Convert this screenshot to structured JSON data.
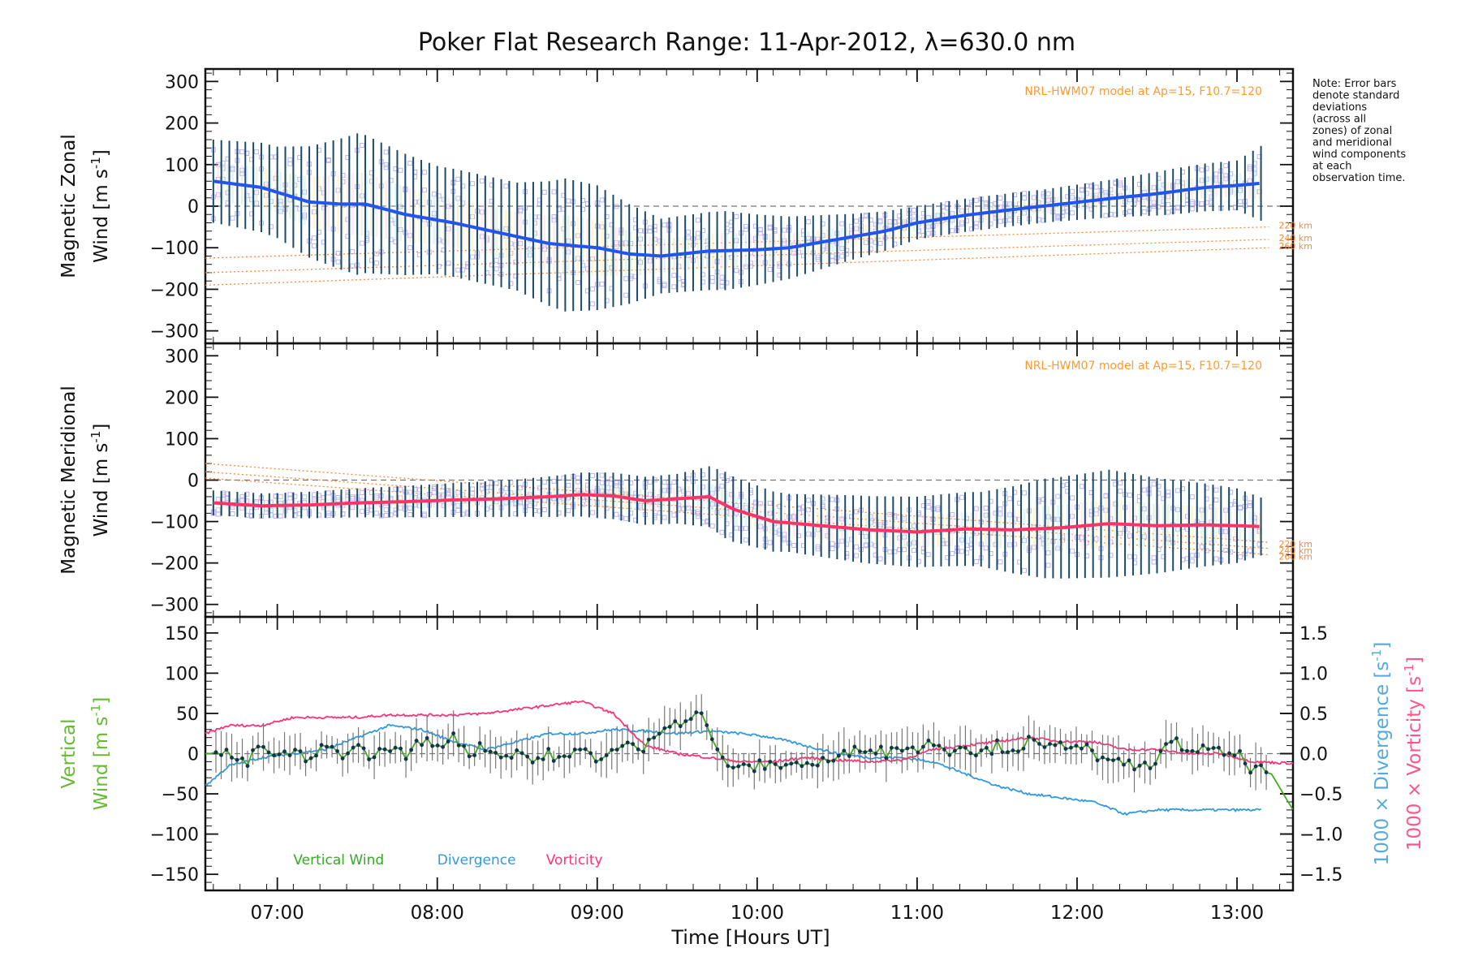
{
  "chart_data": {
    "title": "Poker Flat Research Range: 11-Apr-2012, λ=630.0 nm",
    "x_axis": {
      "label": "Time [Hours UT]",
      "range_hours": [
        6.55,
        13.35
      ],
      "tick_hours": [
        7,
        8,
        9,
        10,
        11,
        12,
        13
      ],
      "tick_labels": [
        "07:00",
        "08:00",
        "09:00",
        "10:00",
        "11:00",
        "12:00",
        "13:00"
      ]
    },
    "note": "Note: Error bars denote standard deviations (across all zones) of zonal and meridional wind components at each observation time.",
    "panels": [
      {
        "id": "zonal",
        "type": "line",
        "ylabel_line1": "Magnetic Zonal",
        "ylabel_line2": "Wind [m s",
        "ylabel_exp": "-1",
        "ylabel_close": "]",
        "ylim": [
          -330,
          330
        ],
        "yticks": [
          -300,
          -200,
          -100,
          0,
          100,
          200,
          300
        ],
        "model_label": "NRL-HWM07 model at Ap=15, F10.7=120",
        "model_altitudes": [
          "220 km",
          "240 km",
          "260 km"
        ],
        "series_color": "#2255ee",
        "mean_series": {
          "name": "Mean zonal wind",
          "x": [
            6.6,
            6.9,
            7.2,
            7.4,
            7.55,
            7.8,
            8.1,
            8.4,
            8.7,
            9.0,
            9.2,
            9.4,
            9.7,
            10.0,
            10.2,
            10.5,
            10.8,
            11.0,
            11.3,
            11.6,
            11.9,
            12.2,
            12.5,
            12.8,
            13.0,
            13.15
          ],
          "y": [
            60,
            45,
            10,
            5,
            5,
            -20,
            -40,
            -65,
            -90,
            -100,
            -115,
            -120,
            -108,
            -105,
            -100,
            -80,
            -60,
            -40,
            -22,
            -8,
            5,
            18,
            30,
            45,
            50,
            55
          ]
        },
        "error_bar_std": {
          "x": [
            6.6,
            7.0,
            7.5,
            8.0,
            8.5,
            8.8,
            9.0,
            9.4,
            9.8,
            10.2,
            10.6,
            11.0,
            11.4,
            11.8,
            12.2,
            12.6,
            13.0,
            13.15
          ],
          "y": [
            100,
            110,
            170,
            130,
            130,
            160,
            150,
            90,
            95,
            75,
            55,
            40,
            40,
            40,
            45,
            55,
            60,
            90
          ]
        },
        "model_lines": [
          {
            "name": "220 km",
            "x": [
              6.55,
              13.2
            ],
            "y": [
              -125,
              -50
            ]
          },
          {
            "name": "240 km",
            "x": [
              6.55,
              13.2
            ],
            "y": [
              -160,
              -80
            ]
          },
          {
            "name": "260 km",
            "x": [
              6.55,
              13.2
            ],
            "y": [
              -190,
              -100
            ]
          }
        ]
      },
      {
        "id": "meridional",
        "type": "line",
        "ylabel_line1": "Magnetic Meridional",
        "ylabel_line2": "Wind [m s",
        "ylabel_exp": "-1",
        "ylabel_close": "]",
        "ylim": [
          -330,
          330
        ],
        "yticks": [
          -300,
          -200,
          -100,
          0,
          100,
          200,
          300
        ],
        "model_label": "NRL-HWM07 model at Ap=15, F10.7=120",
        "model_altitudes": [
          "220 km",
          "240 km",
          "260 km"
        ],
        "series_color": "#ff3366",
        "mean_series": {
          "name": "Mean meridional wind",
          "x": [
            6.6,
            6.9,
            7.2,
            7.5,
            7.8,
            8.1,
            8.4,
            8.7,
            8.9,
            9.1,
            9.3,
            9.5,
            9.7,
            9.85,
            10.1,
            10.4,
            10.7,
            11.0,
            11.3,
            11.6,
            11.9,
            12.2,
            12.5,
            12.8,
            13.0,
            13.15
          ],
          "y": [
            -55,
            -62,
            -60,
            -55,
            -52,
            -48,
            -45,
            -40,
            -35,
            -38,
            -50,
            -45,
            -40,
            -70,
            -100,
            -110,
            -120,
            -125,
            -118,
            -120,
            -115,
            -105,
            -110,
            -108,
            -110,
            -112
          ]
        },
        "error_bar_std": {
          "x": [
            6.6,
            7.0,
            7.5,
            8.0,
            8.5,
            9.0,
            9.5,
            9.8,
            10.2,
            10.6,
            11.0,
            11.4,
            11.8,
            12.2,
            12.6,
            13.0,
            13.15
          ],
          "y": [
            30,
            30,
            35,
            40,
            45,
            55,
            60,
            80,
            70,
            80,
            85,
            90,
            120,
            130,
            110,
            90,
            70
          ]
        },
        "model_lines": [
          {
            "name": "220 km",
            "x": [
              6.55,
              13.2
            ],
            "y": [
              40,
              -150
            ]
          },
          {
            "name": "240 km",
            "x": [
              6.55,
              13.2
            ],
            "y": [
              20,
              -165
            ]
          },
          {
            "name": "260 km",
            "x": [
              6.55,
              13.2
            ],
            "y": [
              5,
              -180
            ]
          }
        ]
      },
      {
        "id": "vertical",
        "type": "line",
        "ylabel_line1": "Vertical",
        "ylabel_line2": "Wind [m s",
        "ylabel_exp": "-1",
        "ylabel_close": "]",
        "ylim": [
          -170,
          170
        ],
        "yticks": [
          -150,
          -100,
          -50,
          0,
          50,
          100,
          150
        ],
        "right_axis": {
          "ylim": [
            -1.7,
            1.7
          ],
          "yticks": [
            -1.5,
            -1.0,
            -0.5,
            0.0,
            0.5,
            1.0,
            1.5
          ],
          "ytick_labels": [
            "−1.5",
            "−1.0",
            "−0.5",
            "0.0",
            "0.5",
            "1.0",
            "1.5"
          ],
          "label_divergence": "1000 × Divergence [s",
          "label_vorticity": "1000 × Vorticity [s",
          "label_exp": "-1",
          "label_close": "]"
        },
        "legend": [
          {
            "name": "Vertical Wind",
            "color": "#33aa22"
          },
          {
            "name": "Divergence",
            "color": "#3399dd"
          },
          {
            "name": "Vorticity",
            "color": "#ff3377"
          }
        ],
        "series": [
          {
            "name": "Vertical Wind",
            "axis": "left",
            "x": [
              6.55,
              6.7,
              6.8,
              6.9,
              7.0,
              7.1,
              7.2,
              7.3,
              7.4,
              7.5,
              7.6,
              7.7,
              7.8,
              7.9,
              8.0,
              8.1,
              8.2,
              8.3,
              8.4,
              8.5,
              8.6,
              8.7,
              8.8,
              8.9,
              9.0,
              9.1,
              9.2,
              9.3,
              9.4,
              9.5,
              9.6,
              9.65,
              9.7,
              9.8,
              9.9,
              10.0,
              10.1,
              10.2,
              10.3,
              10.4,
              10.5,
              10.6,
              10.7,
              10.8,
              10.9,
              11.0,
              11.1,
              11.2,
              11.3,
              11.4,
              11.5,
              11.6,
              11.7,
              11.8,
              11.9,
              12.0,
              12.1,
              12.2,
              12.3,
              12.4,
              12.5,
              12.6,
              12.7,
              12.8,
              12.9,
              13.0,
              13.1,
              13.2,
              13.35
            ],
            "y": [
              0,
              0,
              -15,
              12,
              -8,
              5,
              -12,
              10,
              0,
              8,
              -5,
              10,
              -3,
              18,
              5,
              25,
              0,
              10,
              -5,
              5,
              -10,
              0,
              -8,
              5,
              -5,
              3,
              10,
              5,
              35,
              40,
              45,
              55,
              20,
              -10,
              -20,
              -15,
              -15,
              -10,
              -15,
              -10,
              -8,
              5,
              10,
              0,
              10,
              5,
              15,
              5,
              10,
              0,
              10,
              5,
              15,
              5,
              10,
              15,
              0,
              -15,
              -10,
              -20,
              -5,
              15,
              5,
              5,
              0,
              0,
              -20,
              -20,
              -70
            ]
          },
          {
            "name": "Divergence",
            "axis": "right",
            "x": [
              6.55,
              6.7,
              6.9,
              7.1,
              7.3,
              7.5,
              7.7,
              7.9,
              8.1,
              8.3,
              8.5,
              8.7,
              8.9,
              9.1,
              9.3,
              9.5,
              9.7,
              9.9,
              10.1,
              10.3,
              10.5,
              10.7,
              10.9,
              11.1,
              11.3,
              11.5,
              11.7,
              11.9,
              12.1,
              12.3,
              12.5,
              12.7,
              12.9,
              13.1,
              13.15
            ],
            "y": [
              -0.4,
              -0.15,
              -0.05,
              0.0,
              0.05,
              0.2,
              0.35,
              0.3,
              0.15,
              0.05,
              0.15,
              0.25,
              0.25,
              0.3,
              0.28,
              0.25,
              0.28,
              0.25,
              0.2,
              0.1,
              0.0,
              -0.05,
              -0.05,
              -0.1,
              -0.25,
              -0.4,
              -0.5,
              -0.55,
              -0.6,
              -0.75,
              -0.7,
              -0.7,
              -0.7,
              -0.7,
              -0.7
            ]
          },
          {
            "name": "Vorticity",
            "axis": "right",
            "x": [
              6.55,
              6.7,
              6.9,
              7.1,
              7.3,
              7.5,
              7.7,
              7.9,
              8.1,
              8.3,
              8.5,
              8.7,
              8.9,
              9.1,
              9.3,
              9.5,
              9.7,
              9.9,
              10.1,
              10.3,
              10.5,
              10.7,
              10.9,
              11.1,
              11.3,
              11.5,
              11.7,
              11.9,
              12.1,
              12.3,
              12.5,
              12.7,
              12.9,
              13.1,
              13.35
            ],
            "y": [
              0.25,
              0.35,
              0.35,
              0.45,
              0.45,
              0.45,
              0.48,
              0.48,
              0.48,
              0.5,
              0.55,
              0.6,
              0.65,
              0.5,
              0.1,
              0.0,
              -0.05,
              -0.1,
              -0.1,
              -0.05,
              -0.08,
              -0.1,
              -0.08,
              0.05,
              0.1,
              0.15,
              0.2,
              0.15,
              0.15,
              0.05,
              0.05,
              0.0,
              0.0,
              -0.1,
              -0.12
            ]
          }
        ]
      }
    ]
  }
}
